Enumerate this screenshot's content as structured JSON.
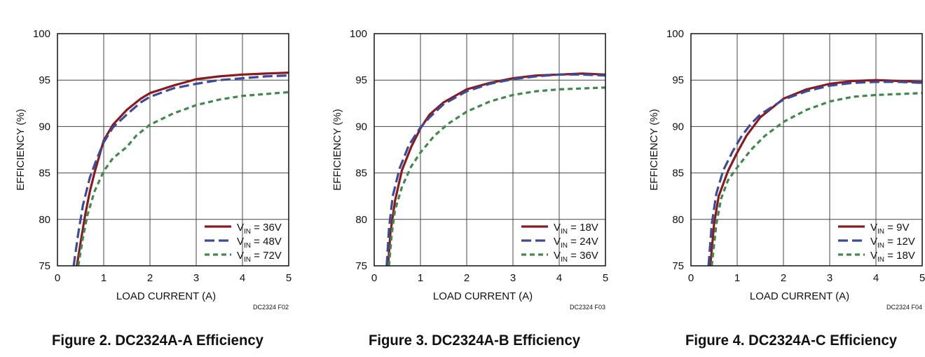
{
  "colors": {
    "series": [
      "#8b1a1f",
      "#3b4a9a",
      "#3e8a4a"
    ],
    "grid": "#444444",
    "frame": "#111111"
  },
  "chart_data": [
    {
      "type": "line",
      "xlabel": "LOAD CURRENT (A)",
      "ylabel": "EFFICIENCY (%)",
      "xlim": [
        0,
        5
      ],
      "ylim": [
        75,
        100
      ],
      "xticks": [
        "0",
        "1",
        "2",
        "3",
        "4",
        "5"
      ],
      "yticks": [
        "75",
        "80",
        "85",
        "90",
        "95",
        "100"
      ],
      "grid": true,
      "legend_position": "bottom-right",
      "code": "DC2324 F02",
      "caption": "Figure 2. DC2324A-A Efficiency",
      "series": [
        {
          "name": "36V",
          "prefix": "V",
          "sub": "IN",
          "suffix": " = 36V",
          "style": "solid",
          "x": [
            0.42,
            0.5,
            0.6,
            0.7,
            0.8,
            1.0,
            1.2,
            1.5,
            1.8,
            2.0,
            2.5,
            3.0,
            3.5,
            4.0,
            4.5,
            5.0
          ],
          "y": [
            75,
            77.5,
            80.5,
            83,
            85,
            88.5,
            90.2,
            91.8,
            93,
            93.6,
            94.4,
            95.1,
            95.4,
            95.6,
            95.7,
            95.8
          ]
        },
        {
          "name": "48V",
          "prefix": "V",
          "sub": "IN",
          "suffix": " = 48V",
          "style": "dash",
          "x": [
            0.35,
            0.45,
            0.55,
            0.7,
            0.85,
            1.0,
            1.2,
            1.5,
            1.8,
            2.0,
            2.5,
            3.0,
            3.5,
            4.0,
            4.5,
            5.0
          ],
          "y": [
            75,
            78.5,
            81.5,
            84.5,
            86.5,
            88.3,
            89.9,
            91.3,
            92.6,
            93.2,
            94.1,
            94.6,
            95.0,
            95.2,
            95.4,
            95.5
          ]
        },
        {
          "name": "72V",
          "prefix": "V",
          "sub": "IN",
          "suffix": " = 72V",
          "style": "shortdash",
          "x": [
            0.45,
            0.55,
            0.65,
            0.8,
            1.0,
            1.2,
            1.5,
            1.7,
            2.0,
            2.5,
            3.0,
            3.5,
            4.0,
            4.5,
            5.0
          ],
          "y": [
            75,
            78,
            80.5,
            83,
            85.2,
            86.6,
            87.8,
            89,
            90.2,
            91.4,
            92.3,
            92.9,
            93.3,
            93.5,
            93.7
          ]
        }
      ]
    },
    {
      "type": "line",
      "xlabel": "LOAD CURRENT (A)",
      "ylabel": "EFFICIENCY (%)",
      "xlim": [
        0,
        5
      ],
      "ylim": [
        75,
        100
      ],
      "xticks": [
        "0",
        "1",
        "2",
        "3",
        "4",
        "5"
      ],
      "yticks": [
        "75",
        "80",
        "85",
        "90",
        "95",
        "100"
      ],
      "grid": true,
      "legend_position": "bottom-right",
      "code": "DC2324 F03",
      "caption": "Figure 3. DC2324A-B Efficiency",
      "series": [
        {
          "name": "18V",
          "prefix": "V",
          "sub": "IN",
          "suffix": " = 18V",
          "style": "solid",
          "x": [
            0.3,
            0.35,
            0.45,
            0.6,
            0.8,
            1.0,
            1.2,
            1.5,
            2.0,
            2.5,
            3.0,
            3.5,
            4.0,
            4.5,
            5.0
          ],
          "y": [
            75,
            78.5,
            82,
            85.3,
            87.8,
            89.8,
            91.3,
            92.6,
            94.0,
            94.7,
            95.2,
            95.5,
            95.6,
            95.7,
            95.6
          ]
        },
        {
          "name": "24V",
          "prefix": "V",
          "sub": "IN",
          "suffix": " = 24V",
          "style": "dash",
          "x": [
            0.27,
            0.32,
            0.4,
            0.55,
            0.75,
            1.0,
            1.2,
            1.5,
            2.0,
            2.5,
            3.0,
            3.5,
            4.0,
            4.5,
            5.0
          ],
          "y": [
            75,
            79,
            82.5,
            85.5,
            88,
            89.9,
            91.0,
            92.4,
            93.8,
            94.6,
            95.1,
            95.4,
            95.6,
            95.6,
            95.5
          ]
        },
        {
          "name": "36V",
          "prefix": "V",
          "sub": "IN",
          "suffix": " = 36V",
          "style": "shortdash",
          "x": [
            0.32,
            0.38,
            0.45,
            0.6,
            0.8,
            1.0,
            1.3,
            1.6,
            2.0,
            2.5,
            3.0,
            3.5,
            4.0,
            4.5,
            5.0
          ],
          "y": [
            75,
            78.5,
            81,
            83.5,
            85.7,
            87.2,
            89.0,
            90.3,
            91.6,
            92.7,
            93.4,
            93.8,
            94.0,
            94.1,
            94.2
          ]
        }
      ]
    },
    {
      "type": "line",
      "xlabel": "LOAD CURRENT (A)",
      "ylabel": "EFFICIENCY (%)",
      "xlim": [
        0,
        5
      ],
      "ylim": [
        75,
        100
      ],
      "xticks": [
        "0",
        "1",
        "2",
        "3",
        "4",
        "5"
      ],
      "yticks": [
        "75",
        "80",
        "85",
        "90",
        "95",
        "100"
      ],
      "grid": true,
      "legend_position": "bottom-right",
      "code": "DC2324 F04",
      "caption": "Figure 4. DC2324A-C Efficiency",
      "series": [
        {
          "name": "9V",
          "prefix": "V",
          "sub": "IN",
          "suffix": " = 9V",
          "style": "solid",
          "x": [
            0.42,
            0.5,
            0.6,
            0.8,
            1.0,
            1.2,
            1.5,
            2.0,
            2.5,
            3.0,
            3.5,
            4.0,
            4.5,
            5.0
          ],
          "y": [
            75,
            79.5,
            82.5,
            85.2,
            87.2,
            89.0,
            91.0,
            93.0,
            94.0,
            94.6,
            94.9,
            95.0,
            94.9,
            94.8
          ]
        },
        {
          "name": "12V",
          "prefix": "V",
          "sub": "IN",
          "suffix": " = 12V",
          "style": "dash",
          "x": [
            0.38,
            0.45,
            0.55,
            0.7,
            0.9,
            1.1,
            1.3,
            1.5,
            2.0,
            2.5,
            3.0,
            3.5,
            4.0,
            4.5,
            5.0
          ],
          "y": [
            75,
            79.5,
            82.8,
            85.3,
            87.3,
            89.0,
            90.3,
            91.3,
            92.9,
            93.8,
            94.4,
            94.7,
            94.8,
            94.8,
            94.7
          ]
        },
        {
          "name": "18V",
          "prefix": "V",
          "sub": "IN",
          "suffix": " = 18V",
          "style": "shortdash",
          "x": [
            0.45,
            0.55,
            0.65,
            0.8,
            1.0,
            1.3,
            1.6,
            2.0,
            2.5,
            3.0,
            3.5,
            4.0,
            4.5,
            5.0
          ],
          "y": [
            75,
            79.5,
            82.2,
            84.2,
            85.6,
            87.5,
            89.0,
            90.5,
            91.8,
            92.7,
            93.2,
            93.4,
            93.5,
            93.6
          ]
        }
      ]
    }
  ]
}
